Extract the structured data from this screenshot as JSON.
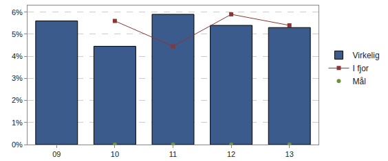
{
  "chart_data": {
    "type": "bar",
    "categories": [
      "09",
      "10",
      "11",
      "12",
      "13"
    ],
    "series": [
      {
        "name": "Virkelig",
        "type": "bar",
        "color": "#3b5b8d",
        "values": [
          5.6,
          4.45,
          5.9,
          5.4,
          5.3
        ]
      },
      {
        "name": "I fjor",
        "type": "line",
        "color": "#8b3535",
        "marker": "square",
        "values": [
          null,
          5.6,
          4.45,
          5.9,
          5.4
        ]
      },
      {
        "name": "Mål",
        "type": "line",
        "color": "#6f8f3f",
        "marker": "circle",
        "line_style": "none",
        "values": [
          null,
          0,
          0,
          0,
          0
        ]
      }
    ],
    "ylim": [
      0,
      6.3
    ],
    "yticks": [
      {
        "value": 0,
        "label": "0%"
      },
      {
        "value": 1,
        "label": "1%"
      },
      {
        "value": 2,
        "label": "2%"
      },
      {
        "value": 3,
        "label": "3%"
      },
      {
        "value": 4,
        "label": "4%"
      },
      {
        "value": 5,
        "label": "5%"
      },
      {
        "value": 6,
        "label": "6%"
      }
    ],
    "grid": true,
    "legend": "right"
  }
}
